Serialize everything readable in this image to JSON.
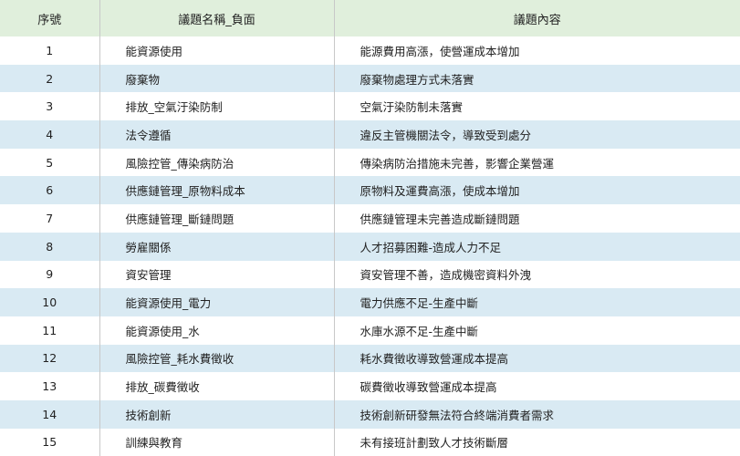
{
  "table": {
    "headers": [
      "序號",
      "議題名稱_負面",
      "議題內容"
    ],
    "rows": [
      {
        "no": "1",
        "name": "能資源使用",
        "content": "能源費用高漲，使營運成本增加"
      },
      {
        "no": "2",
        "name": "廢棄物",
        "content": "廢棄物處理方式未落實"
      },
      {
        "no": "3",
        "name": "排放_空氣汙染防制",
        "content": "空氣汙染防制未落實"
      },
      {
        "no": "4",
        "name": "法令遵循",
        "content": "違反主管機關法令，導致受到處分"
      },
      {
        "no": "5",
        "name": "風險控管_傳染病防治",
        "content": "傳染病防治措施未完善，影響企業營運"
      },
      {
        "no": "6",
        "name": "供應鏈管理_原物料成本",
        "content": "原物料及運費高漲，使成本增加"
      },
      {
        "no": "7",
        "name": "供應鏈管理_斷鏈問題",
        "content": "供應鏈管理未完善造成斷鏈問題"
      },
      {
        "no": "8",
        "name": "勞雇關係",
        "content": "人才招募困難-造成人力不足"
      },
      {
        "no": "9",
        "name": "資安管理",
        "content": "資安管理不善，造成機密資料外洩"
      },
      {
        "no": "10",
        "name": "能資源使用_電力",
        "content": "電力供應不足-生產中斷"
      },
      {
        "no": "11",
        "name": "能資源使用_水",
        "content": "水庫水源不足-生產中斷"
      },
      {
        "no": "12",
        "name": "風險控管_耗水費徵收",
        "content": "耗水費徵收導致營運成本提高"
      },
      {
        "no": "13",
        "name": "排放_碳費徵收",
        "content": "碳費徵收導致營運成本提高"
      },
      {
        "no": "14",
        "name": "技術創新",
        "content": "技術創新研發無法符合終端消費者需求"
      },
      {
        "no": "15",
        "name": "訓練與教育",
        "content": "未有接班計劃致人才技術斷層"
      }
    ]
  },
  "colors": {
    "header_bg": "#e0efdc",
    "alt_row_bg": "#d9eaf3"
  }
}
